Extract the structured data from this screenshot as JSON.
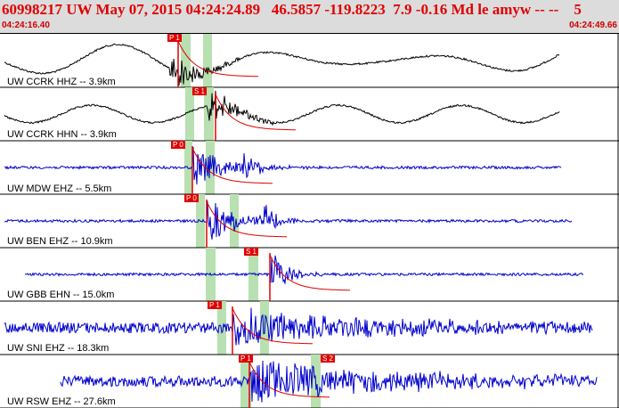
{
  "header": {
    "title": "60998217 UW May 07, 2015 04:24:24.89   46.5857 -119.8223  7.9 -0.16 Md le amyw -- --    5",
    "start_time": "04:24:16.40",
    "end_time": "04:24:49.66"
  },
  "colors": {
    "header_bg": "#dcdcdc",
    "header_text": "#e00000",
    "trace_black": "#000000",
    "trace_blue": "#0000cc",
    "pick_red": "#e00000",
    "window_green": "#b8e0b0"
  },
  "traces": [
    {
      "label": "UW CCRK HHZ -- 3.9km",
      "color": "black",
      "pick": "P 1"
    },
    {
      "label": "UW CCRK HHN -- 3.9km",
      "color": "black",
      "pick": "S 1"
    },
    {
      "label": "UW MDW EHZ -- 5.5km",
      "color": "blue",
      "pick": "P 0"
    },
    {
      "label": "UW BEN EHZ -- 10.9km",
      "color": "blue",
      "pick": "P 0"
    },
    {
      "label": "UW GBB EHN -- 15.0km",
      "color": "blue",
      "pick": "S 1"
    },
    {
      "label": "UW SNI EHZ -- 18.3km",
      "color": "blue",
      "pick": "P 1"
    },
    {
      "label": "UW RSW EHZ -- 27.6km",
      "color": "blue",
      "pick": "P 1",
      "pick2": "S 2"
    }
  ]
}
